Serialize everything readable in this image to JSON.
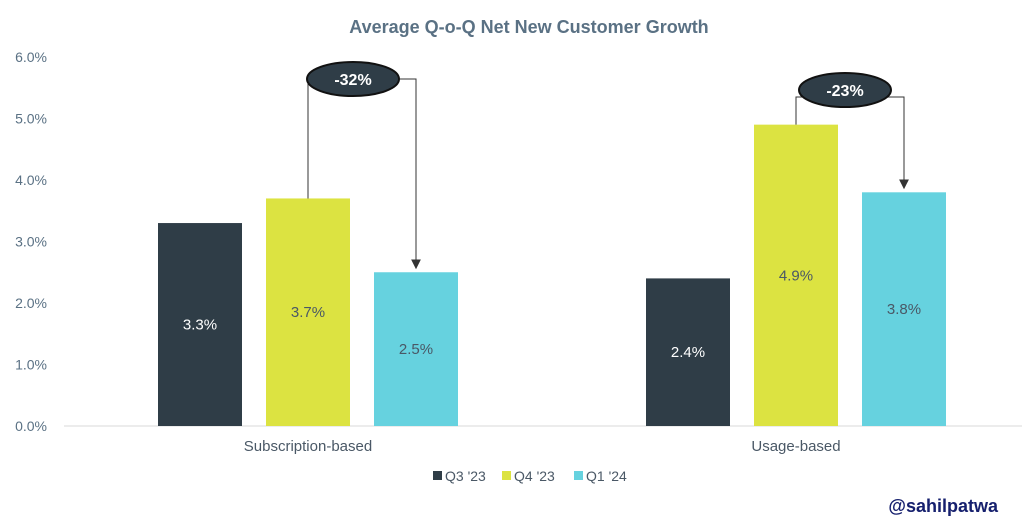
{
  "chart_data": {
    "type": "bar",
    "title": "Average Q-o-Q Net New Customer Growth",
    "categories": [
      "Subscription-based",
      "Usage-based"
    ],
    "series": [
      {
        "name": "Q3 '23",
        "color": "#2f3d47",
        "label_color": "#ffffff",
        "values": [
          3.3,
          2.4
        ],
        "labels": [
          "3.3%",
          "2.4%"
        ]
      },
      {
        "name": "Q4 '23",
        "color": "#dce341",
        "label_color": "#4a5866",
        "values": [
          3.7,
          4.9
        ],
        "labels": [
          "3.7%",
          "4.9%"
        ]
      },
      {
        "name": "Q1 '24",
        "color": "#66d2df",
        "label_color": "#4a5866",
        "values": [
          2.5,
          3.8
        ],
        "labels": [
          "2.5%",
          "3.8%"
        ]
      }
    ],
    "ylim": [
      0,
      6
    ],
    "yticks": [
      0,
      1,
      2,
      3,
      4,
      5,
      6
    ],
    "ytick_labels": [
      "0.0%",
      "1.0%",
      "2.0%",
      "3.0%",
      "4.0%",
      "5.0%",
      "6.0%"
    ],
    "xlabel": "",
    "ylabel": "",
    "grid": false,
    "legend_position": "bottom-center",
    "annotations": [
      {
        "category": "Subscription-based",
        "from_series": "Q4 '23",
        "to_series": "Q1 '24",
        "text": "-32%"
      },
      {
        "category": "Usage-based",
        "from_series": "Q4 '23",
        "to_series": "Q1 '24",
        "text": "-23%"
      }
    ]
  },
  "watermark": "@sahilpatwa"
}
